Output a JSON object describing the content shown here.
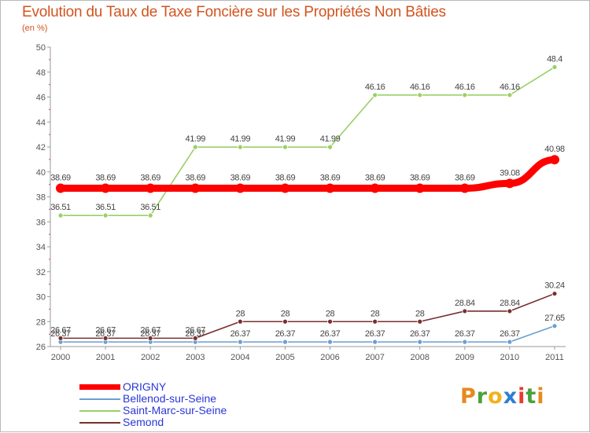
{
  "chart_data": {
    "type": "line",
    "title": "Evolution du Taux de Taxe Foncière sur les Propriétés Non Bâties",
    "subtitle": "(en %)",
    "xlabel": "",
    "ylabel": "(en %)",
    "ylim": [
      26,
      50
    ],
    "y_ticks": [
      26,
      28,
      30,
      32,
      34,
      36,
      38,
      40,
      42,
      44,
      46,
      48,
      50
    ],
    "categories": [
      "2000",
      "2001",
      "2002",
      "2003",
      "2004",
      "2005",
      "2006",
      "2007",
      "2008",
      "2009",
      "2010",
      "2011"
    ],
    "series": [
      {
        "name": "ORIGNY",
        "color": "#ff0000",
        "values": [
          38.69,
          38.69,
          38.69,
          38.69,
          38.69,
          38.69,
          38.69,
          38.69,
          38.69,
          38.69,
          39.08,
          40.98
        ],
        "labels": [
          "38.69",
          "38.69",
          "38.69",
          "38.69",
          "38.69",
          "38.69",
          "38.69",
          "38.69",
          "38.69",
          "38.69",
          "39.08",
          "40.98"
        ]
      },
      {
        "name": "Bellenod-sur-Seine",
        "color": "#6a9fd0",
        "values": [
          26.37,
          26.37,
          26.37,
          26.37,
          26.37,
          26.37,
          26.37,
          26.37,
          26.37,
          26.37,
          26.37,
          27.65
        ],
        "labels": [
          "26.37",
          "26.37",
          "26.37",
          "26.37",
          "26.37",
          "26.37",
          "26.37",
          "26.37",
          "26.37",
          "26.37",
          "26.37",
          "27.65"
        ]
      },
      {
        "name": "Saint-Marc-sur-Seine",
        "color": "#99d066",
        "values": [
          36.51,
          36.51,
          36.51,
          41.99,
          41.99,
          41.99,
          41.99,
          46.16,
          46.16,
          46.16,
          46.16,
          48.4
        ],
        "labels": [
          "36.51",
          "36.51",
          "36.51",
          "41.99",
          "41.99",
          "41.99",
          "41.99",
          "46.16",
          "46.16",
          "46.16",
          "46.16",
          "48.4"
        ]
      },
      {
        "name": "Semond",
        "color": "#7a2f2f",
        "values": [
          26.67,
          26.67,
          26.67,
          26.67,
          28,
          28,
          28,
          28,
          28,
          28.84,
          28.84,
          30.24
        ],
        "labels": [
          "26.67",
          "26.67",
          "26.67",
          "26.67",
          "28",
          "28",
          "28",
          "28",
          "28",
          "28.84",
          "28.84",
          "30.24"
        ]
      }
    ],
    "legend_position": "bottom-left",
    "grid": false
  },
  "legend": {
    "items": [
      {
        "label": "ORIGNY"
      },
      {
        "label": "Bellenod-sur-Seine"
      },
      {
        "label": "Saint-Marc-sur-Seine"
      },
      {
        "label": "Semond"
      }
    ]
  },
  "logo": {
    "letters": [
      "P",
      "r",
      "o",
      "x",
      "i",
      "t",
      "i"
    ],
    "colors": [
      "#e58a1d",
      "#4aa23c",
      "#f2b21a",
      "#2d7fd1",
      "#e63c2e",
      "#4aa23c",
      "#e58a1d"
    ]
  }
}
